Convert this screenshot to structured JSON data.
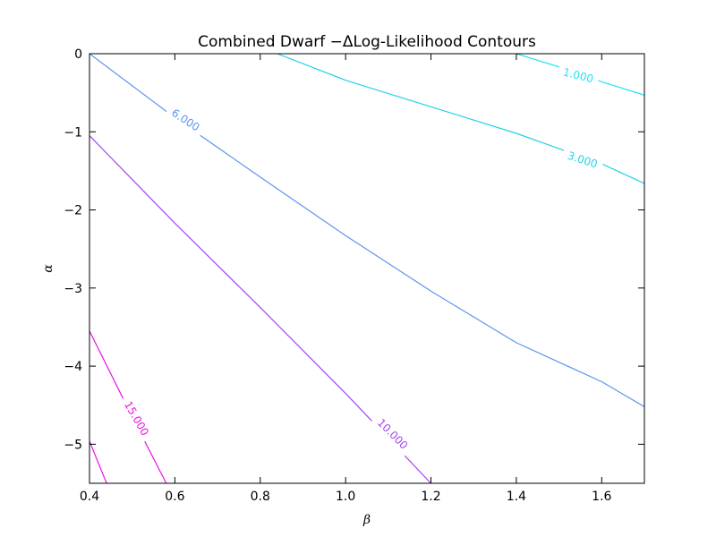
{
  "chart_data": {
    "type": "line",
    "title": "Combined Dwarf −ΔLog-Likelihood Contours",
    "xlabel": "β",
    "ylabel": "α",
    "xlim": [
      0.4,
      1.7
    ],
    "ylim": [
      -5.5,
      0
    ],
    "x_ticks": [
      0.4,
      0.6,
      0.8,
      1.0,
      1.2,
      1.4,
      1.6
    ],
    "x_tick_labels": [
      "0.4",
      "0.6",
      "0.8",
      "1.0",
      "1.2",
      "1.4",
      "1.6"
    ],
    "y_ticks": [
      0,
      -1,
      -2,
      -3,
      -4,
      -5
    ],
    "y_tick_labels": [
      "0",
      "−1",
      "−2",
      "−3",
      "−4",
      "−5"
    ],
    "grid": false,
    "series": [
      {
        "name": "1.000",
        "color": "#22e0f2",
        "label_at": [
          1.545,
          -0.28
        ],
        "label_angle_deg": 14,
        "x": [
          1.4,
          1.5,
          1.6,
          1.7
        ],
        "y": [
          0.0,
          -0.17,
          -0.36,
          -0.53
        ]
      },
      {
        "name": "3.000",
        "color": "#22d2ea",
        "label_at": [
          1.555,
          -1.36
        ],
        "label_angle_deg": 18,
        "x": [
          0.84,
          1.0,
          1.2,
          1.4,
          1.6,
          1.7
        ],
        "y": [
          0.0,
          -0.34,
          -0.68,
          -1.02,
          -1.41,
          -1.66
        ]
      },
      {
        "name": "6.000",
        "color": "#5b95f0",
        "label_at": [
          0.625,
          -0.85
        ],
        "label_angle_deg": 33,
        "x": [
          0.4,
          0.6,
          0.8,
          1.0,
          1.2,
          1.4,
          1.6,
          1.7
        ],
        "y": [
          0.0,
          -0.82,
          -1.58,
          -2.33,
          -3.04,
          -3.7,
          -4.2,
          -4.52
        ]
      },
      {
        "name": "10.000",
        "color": "#a545f2",
        "label_at": [
          1.11,
          -4.87
        ],
        "label_angle_deg": 45,
        "x": [
          0.4,
          0.6,
          0.8,
          1.0,
          1.2
        ],
        "y": [
          -1.05,
          -2.17,
          -3.25,
          -4.35,
          -5.5
        ]
      },
      {
        "name": "15.000",
        "color": "#ee10e6",
        "label_at": [
          0.51,
          -4.67
        ],
        "label_angle_deg": 60,
        "x": [
          0.4,
          0.5,
          0.58
        ],
        "y": [
          -3.55,
          -4.65,
          -5.5
        ]
      },
      {
        "name": "",
        "color": "#ee10e6",
        "x": [
          0.4,
          0.44
        ],
        "y": [
          -4.96,
          -5.5
        ]
      }
    ]
  }
}
